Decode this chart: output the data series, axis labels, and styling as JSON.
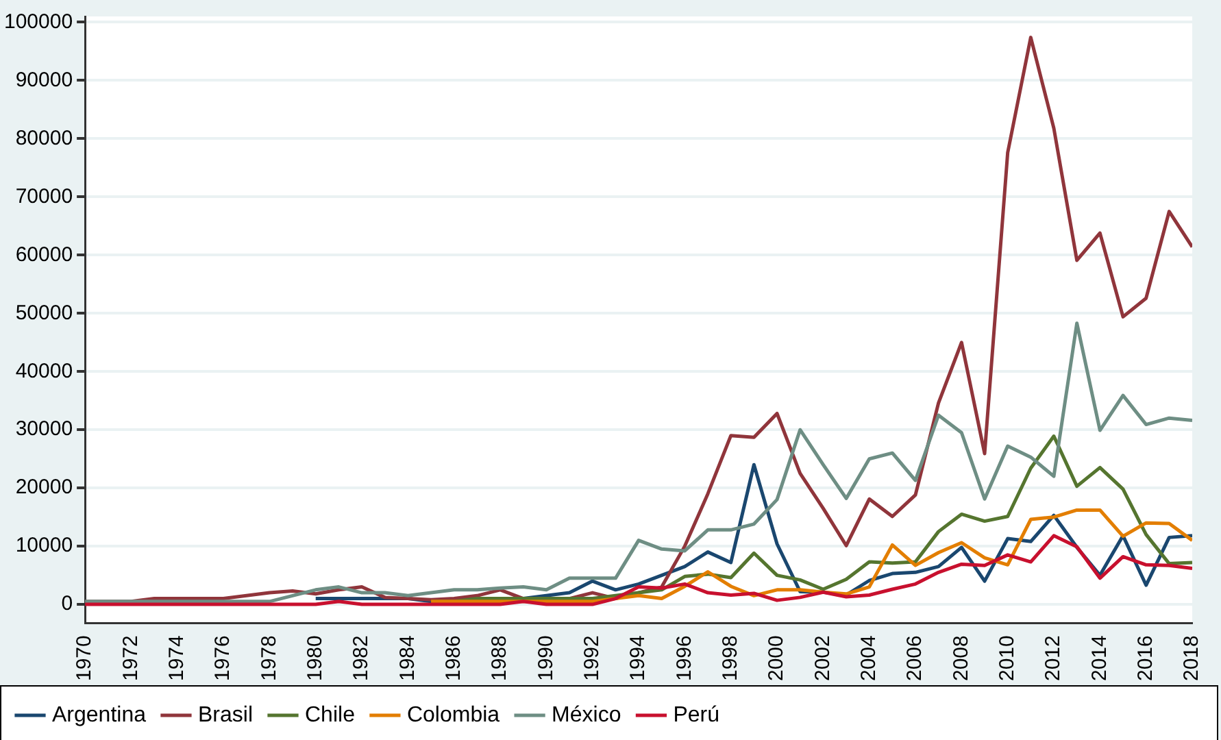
{
  "chart_data": {
    "type": "line",
    "x": [
      1970,
      1971,
      1972,
      1973,
      1974,
      1975,
      1976,
      1977,
      1978,
      1979,
      1980,
      1981,
      1982,
      1983,
      1984,
      1985,
      1986,
      1987,
      1988,
      1989,
      1990,
      1991,
      1992,
      1993,
      1994,
      1995,
      1996,
      1997,
      1998,
      1999,
      2000,
      2001,
      2002,
      2003,
      2004,
      2005,
      2006,
      2007,
      2008,
      2009,
      2010,
      2011,
      2012,
      2013,
      2014,
      2015,
      2016,
      2017,
      2018
    ],
    "series": [
      {
        "name": "Argentina",
        "color": "#1a476f",
        "values": [
          null,
          null,
          null,
          null,
          null,
          null,
          null,
          null,
          null,
          null,
          1000,
          1000,
          1000,
          1000,
          1000,
          500,
          500,
          500,
          500,
          1000,
          1500,
          2000,
          4000,
          2500,
          3500,
          5000,
          6500,
          9000,
          7200,
          24000,
          10400,
          2200,
          2100,
          1600,
          4100,
          5300,
          5500,
          6500,
          9800,
          4000,
          11300,
          10800,
          15300,
          9800,
          5000,
          11800,
          3300,
          11500,
          11800
        ]
      },
      {
        "name": "Brasil",
        "color": "#90353b",
        "values": [
          500,
          500,
          500,
          1000,
          1000,
          1000,
          1000,
          1500,
          2000,
          2300,
          1800,
          2500,
          3000,
          1200,
          1000,
          800,
          1000,
          1500,
          2500,
          1000,
          1000,
          1000,
          2000,
          1000,
          2000,
          3000,
          10000,
          19000,
          29000,
          28700,
          32800,
          22500,
          16500,
          10100,
          18100,
          15100,
          18800,
          34600,
          45000,
          25900,
          77600,
          97400,
          81800,
          59100,
          63800,
          49400,
          52600,
          67500,
          61400
        ]
      },
      {
        "name": "Chile",
        "color": "#55752f",
        "values": [
          null,
          null,
          null,
          null,
          null,
          null,
          null,
          null,
          null,
          null,
          null,
          null,
          null,
          null,
          null,
          500,
          500,
          1000,
          1000,
          1000,
          1000,
          1000,
          1000,
          1500,
          2000,
          2500,
          4800,
          5200,
          4600,
          8800,
          5000,
          4200,
          2600,
          4300,
          7300,
          7100,
          7300,
          12500,
          15500,
          14300,
          15100,
          23400,
          28900,
          20300,
          23500,
          19800,
          12000,
          7000,
          7200
        ]
      },
      {
        "name": "Colombia",
        "color": "#e37e00",
        "values": [
          null,
          null,
          null,
          null,
          null,
          null,
          null,
          null,
          null,
          null,
          null,
          null,
          null,
          null,
          null,
          500,
          500,
          500,
          500,
          500,
          500,
          500,
          500,
          1000,
          1500,
          1000,
          3100,
          5600,
          3100,
          1500,
          2500,
          2500,
          2100,
          1800,
          3000,
          10200,
          6700,
          8900,
          10600,
          8000,
          6800,
          14600,
          15000,
          16200,
          16200,
          11700,
          14000,
          13900,
          11000
        ]
      },
      {
        "name": "México",
        "color": "#6e8e84",
        "values": [
          500,
          500,
          500,
          500,
          500,
          500,
          500,
          500,
          500,
          1500,
          2500,
          3000,
          2000,
          2000,
          1500,
          2000,
          2500,
          2500,
          2800,
          3000,
          2500,
          4500,
          4500,
          4500,
          11000,
          9500,
          9200,
          12800,
          12800,
          13800,
          18000,
          30000,
          24000,
          18200,
          25000,
          26000,
          21300,
          32500,
          29500,
          18100,
          27200,
          25300,
          22000,
          48300,
          29900,
          35900,
          30900,
          32000,
          31600
        ]
      },
      {
        "name": "Perú",
        "color": "#c8102e",
        "values": [
          0,
          0,
          0,
          0,
          0,
          0,
          0,
          0,
          0,
          0,
          0,
          500,
          0,
          0,
          0,
          0,
          0,
          0,
          0,
          500,
          0,
          0,
          0,
          1000,
          3000,
          2800,
          3500,
          2000,
          1600,
          1900,
          700,
          1200,
          2100,
          1300,
          1600,
          2600,
          3500,
          5500,
          6900,
          6700,
          8500,
          7300,
          11800,
          9900,
          4500,
          8200,
          6800,
          6700,
          6200
        ]
      }
    ],
    "xlim": [
      1970,
      2018
    ],
    "xticks": [
      1970,
      1972,
      1974,
      1976,
      1978,
      1980,
      1982,
      1984,
      1986,
      1988,
      1990,
      1992,
      1994,
      1996,
      1998,
      2000,
      2002,
      2004,
      2006,
      2008,
      2010,
      2012,
      2014,
      2016,
      2018
    ],
    "ylim": [
      -3200,
      101000
    ],
    "yticks": [
      0,
      10000,
      20000,
      30000,
      40000,
      50000,
      60000,
      70000,
      80000,
      90000,
      100000
    ],
    "grid": "y",
    "legend": "bottom",
    "marker": "none",
    "line_style": "solid"
  }
}
